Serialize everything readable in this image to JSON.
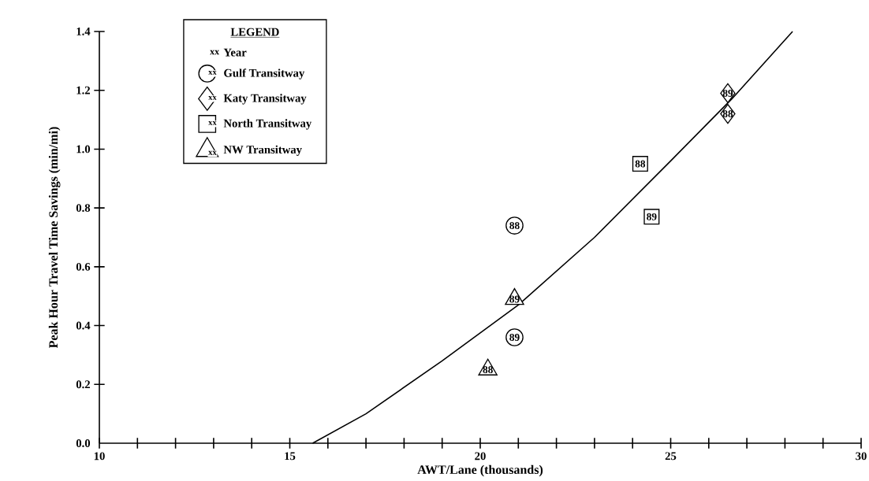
{
  "chart_data": {
    "type": "scatter",
    "xlabel": "AWT/Lane (thousands)",
    "ylabel": "Peak Hour Travel Time Savings (min/mi)",
    "legend_title": "LEGEND",
    "annotations": [
      "xx",
      "Year",
      {
        "text": "88",
        "x": 20.9,
        "y": 0.74
      },
      {
        "text": "89",
        "x": 20.9,
        "y": 0.36
      },
      {
        "text": "88",
        "x": 26.5,
        "y": 1.12
      },
      {
        "text": "89",
        "x": 26.5,
        "y": 1.19
      },
      {
        "text": "88",
        "x": 24.2,
        "y": 0.95
      },
      {
        "text": "89",
        "x": 24.5,
        "y": 0.77
      },
      {
        "text": "88",
        "x": 20.2,
        "y": 0.25
      },
      {
        "text": "89",
        "x": 20.9,
        "y": 0.49
      }
    ],
    "xlim": [
      10,
      30
    ],
    "xticks": [
      10,
      {
        "value": 11,
        "label": null
      },
      {
        "value": 12,
        "label": null
      },
      {
        "value": 13,
        "label": null
      },
      {
        "value": 14,
        "label": null
      },
      15,
      {
        "value": 16,
        "label": null
      },
      {
        "value": 17,
        "label": null
      },
      {
        "value": 18,
        "label": null
      },
      {
        "value": 19,
        "label": null
      },
      20,
      {
        "value": 21,
        "label": null
      },
      {
        "value": 22,
        "label": null
      },
      {
        "value": 23,
        "label": null
      },
      {
        "value": 24,
        "label": null
      },
      25,
      {
        "value": 26,
        "label": null
      },
      {
        "value": 27,
        "label": null
      },
      {
        "value": 28,
        "label": null
      },
      {
        "value": 29,
        "label": null
      },
      30
    ],
    "ylim": [
      0,
      1.4
    ],
    "yticks": [
      {
        "value": 0,
        "label": "0.0"
      },
      {
        "value": 0.2,
        "label": "0.2"
      },
      {
        "value": 0.4,
        "label": "0.4"
      },
      {
        "value": 0.6,
        "label": "0.6"
      },
      {
        "value": 0.8,
        "label": "0.8"
      },
      {
        "value": 1.0,
        "label": "1.0"
      },
      {
        "value": 1.2,
        "label": "1.2"
      },
      {
        "value": 1.4,
        "label": "1.4"
      }
    ],
    "grid": false,
    "legend": "top left",
    "series": [
      {
        "name": "Gulf Transitway",
        "type": "scatter",
        "marker": "circle",
        "color": "#000000",
        "x": [
          20.9,
          20.9
        ],
        "values": [
          0.74,
          0.36
        ]
      },
      {
        "name": "Katy Transitway",
        "type": "scatter",
        "marker": "diamond",
        "color": "#000000",
        "x": [
          26.5,
          26.5
        ],
        "values": [
          1.12,
          1.19
        ]
      },
      {
        "name": "North Transitway",
        "type": "scatter",
        "marker": "square",
        "color": "#000000",
        "x": [
          24.2,
          24.5
        ],
        "values": [
          0.95,
          0.77
        ]
      },
      {
        "name": "NW Transitway",
        "type": "scatter",
        "marker": "triangle",
        "color": "#000000",
        "x": [
          20.2,
          20.9
        ],
        "values": [
          0.25,
          0.49
        ]
      },
      {
        "type": "line",
        "marker": "none",
        "line_style": "solid",
        "color": "#000000",
        "x": [
          15.6,
          17,
          19,
          21,
          23,
          25,
          26.6,
          28.2
        ],
        "values": [
          0,
          0.1,
          0.28,
          0.47,
          0.7,
          0.96,
          1.17,
          1.4
        ]
      }
    ]
  }
}
